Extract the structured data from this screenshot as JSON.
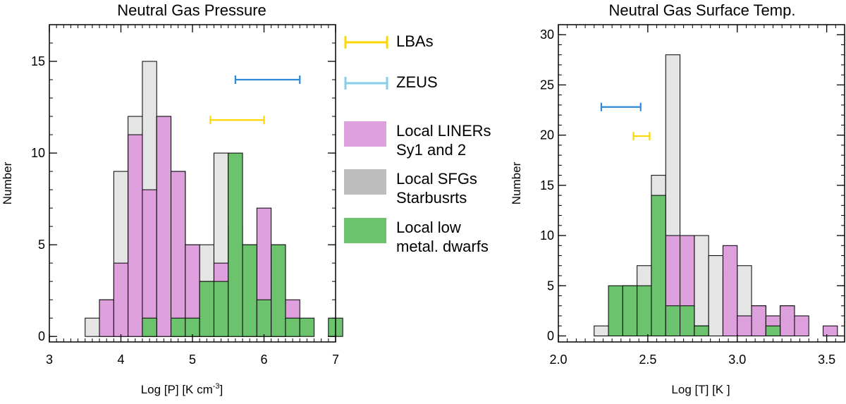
{
  "colors": {
    "liners": "#DDA0DD",
    "sfgs": "#E5E5E5",
    "dwarfs": "#6CC36E",
    "lbas": "#FFD700",
    "zeus": "#2E8BDB",
    "zeus_legend": "#87CEEB",
    "sfgs_legend": "#BEBEBE"
  },
  "legend": {
    "lbas": "LBAs",
    "zeus": "ZEUS",
    "liners_line1": "Local LINERs",
    "liners_line2": "Sy1 and 2",
    "sfgs_line1": "Local SFGs",
    "sfgs_line2": "Starbusrts",
    "dwarfs_line1": "Local low",
    "dwarfs_line2": "metal. dwarfs"
  },
  "chart_data": [
    {
      "type": "bar",
      "title": "Neutral Gas Pressure",
      "xlabel": "Log [P] [K cm",
      "xlabel_sup": "-3",
      "xlabel_end": "]",
      "ylabel": "Number",
      "xlim": [
        3,
        7
      ],
      "ylim": [
        -0.3,
        17
      ],
      "xticks": [
        "3",
        "4",
        "5",
        "6",
        "7"
      ],
      "yticks": [
        "0",
        "5",
        "10",
        "15"
      ],
      "bin_width": 0.2,
      "series": [
        {
          "name": "Local SFGs Starbusrts",
          "color_key": "sfgs",
          "bins": [
            [
              3.5,
              1
            ],
            [
              3.7,
              2
            ],
            [
              3.9,
              9
            ],
            [
              4.1,
              12
            ],
            [
              4.3,
              15
            ],
            [
              4.5,
              12
            ],
            [
              4.7,
              9
            ],
            [
              4.9,
              5
            ],
            [
              5.1,
              5
            ],
            [
              5.3,
              10
            ],
            [
              5.5,
              6
            ],
            [
              5.7,
              5
            ],
            [
              5.9,
              3
            ],
            [
              6.1,
              2
            ]
          ]
        },
        {
          "name": "Local LINERs Sy1 and 2",
          "color_key": "liners",
          "bins": [
            [
              3.7,
              2
            ],
            [
              3.9,
              4
            ],
            [
              4.1,
              11
            ],
            [
              4.3,
              8
            ],
            [
              4.5,
              12
            ],
            [
              4.7,
              9
            ],
            [
              4.9,
              5
            ],
            [
              5.1,
              3
            ],
            [
              5.3,
              4
            ],
            [
              5.7,
              5
            ],
            [
              5.9,
              7
            ],
            [
              6.1,
              5
            ],
            [
              6.3,
              2
            ]
          ]
        },
        {
          "name": "Local low metal. dwarfs",
          "color_key": "dwarfs",
          "bins": [
            [
              4.3,
              1
            ],
            [
              4.7,
              1
            ],
            [
              4.9,
              1
            ],
            [
              5.1,
              3
            ],
            [
              5.3,
              3
            ],
            [
              5.5,
              10
            ],
            [
              5.7,
              5
            ],
            [
              5.9,
              2
            ],
            [
              6.1,
              5
            ],
            [
              6.3,
              1
            ],
            [
              6.5,
              1
            ],
            [
              6.9,
              1
            ]
          ]
        }
      ],
      "ranges": [
        {
          "name": "ZEUS",
          "color_key": "zeus",
          "x": [
            5.6,
            6.5
          ],
          "y": 14.0
        },
        {
          "name": "LBAs",
          "color_key": "lbas",
          "x": [
            5.25,
            6.0
          ],
          "y": 11.8
        }
      ]
    },
    {
      "type": "bar",
      "title": "Neutral Gas Surface Temp.",
      "xlabel": "Log [T] [K  ]",
      "ylabel": "Number",
      "xlim": [
        2.0,
        3.6
      ],
      "ylim": [
        -0.6,
        31
      ],
      "xticks": [
        "2.0",
        "2.5",
        "3.0",
        "3.5"
      ],
      "yticks": [
        "0",
        "5",
        "10",
        "15",
        "20",
        "25",
        "30"
      ],
      "bin_width": 0.08,
      "series": [
        {
          "name": "Local SFGs Starbusrts",
          "color_key": "sfgs",
          "bins": [
            [
              2.2,
              1
            ],
            [
              2.36,
              5
            ],
            [
              2.44,
              7
            ],
            [
              2.52,
              16
            ],
            [
              2.6,
              28
            ],
            [
              2.68,
              9
            ],
            [
              2.76,
              10
            ],
            [
              2.84,
              8
            ],
            [
              2.92,
              6
            ],
            [
              3.0,
              7
            ],
            [
              3.08,
              3
            ],
            [
              3.16,
              2
            ],
            [
              3.24,
              3
            ]
          ]
        },
        {
          "name": "Local LINERs Sy1 and 2",
          "color_key": "liners",
          "bins": [
            [
              2.6,
              10
            ],
            [
              2.68,
              10
            ],
            [
              2.76,
              1
            ],
            [
              2.92,
              9
            ],
            [
              3.0,
              2
            ],
            [
              3.08,
              3
            ],
            [
              3.16,
              2
            ],
            [
              3.24,
              3
            ],
            [
              3.32,
              2
            ],
            [
              3.48,
              1
            ]
          ]
        },
        {
          "name": "Local low metal. dwarfs",
          "color_key": "dwarfs",
          "bins": [
            [
              2.28,
              5
            ],
            [
              2.36,
              5
            ],
            [
              2.44,
              5
            ],
            [
              2.52,
              14
            ],
            [
              2.6,
              3
            ],
            [
              2.68,
              3
            ],
            [
              2.76,
              1
            ],
            [
              3.16,
              1
            ]
          ]
        }
      ],
      "ranges": [
        {
          "name": "ZEUS",
          "color_key": "zeus",
          "x": [
            2.24,
            2.46
          ],
          "y": 22.8
        },
        {
          "name": "LBAs",
          "color_key": "lbas",
          "x": [
            2.42,
            2.51
          ],
          "y": 19.9
        }
      ]
    }
  ]
}
